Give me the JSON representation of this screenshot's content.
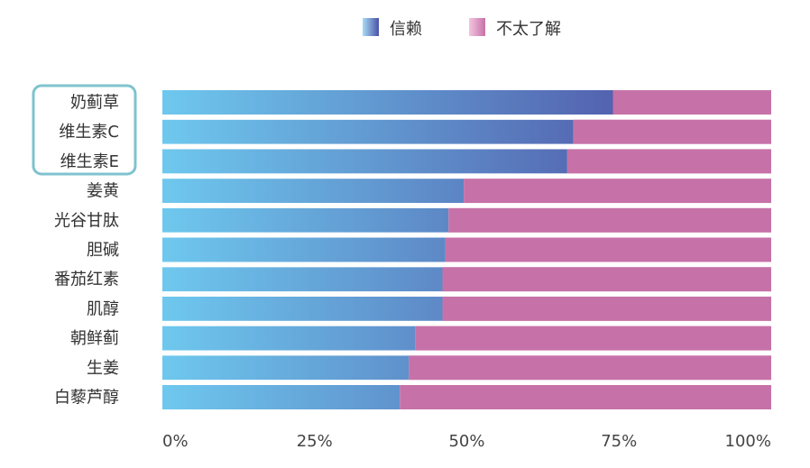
{
  "chart_data": {
    "type": "bar",
    "stacked": true,
    "orientation": "horizontal",
    "categories": [
      "奶蓟草",
      "维生素C",
      "维生素E",
      "姜黄",
      "光谷甘肽",
      "胆碱",
      "番茄红素",
      "肌醇",
      "朝鲜蓟",
      "生姜",
      "白藜芦醇"
    ],
    "series": [
      {
        "name": "信赖",
        "values": [
          74,
          67.5,
          66.5,
          49.5,
          47,
          46.5,
          46,
          46,
          41.5,
          40.5,
          39
        ]
      },
      {
        "name": "不太了解",
        "values": [
          26,
          32.5,
          33.5,
          50.5,
          53,
          53.5,
          54,
          54,
          58.5,
          59.5,
          61
        ]
      }
    ],
    "xlim": [
      0,
      100
    ],
    "x_ticks": [
      "0%",
      "25%",
      "50%",
      "75%",
      "100%"
    ],
    "legend_position": "top",
    "highlighted_categories": [
      "奶蓟草",
      "维生素C",
      "维生素E"
    ],
    "colors": {
      "trust_start": "#6ec8ee",
      "trust_end": "#4a3f99",
      "unknown": "#c672a8",
      "highlight_border": "#7fc3cf"
    }
  }
}
